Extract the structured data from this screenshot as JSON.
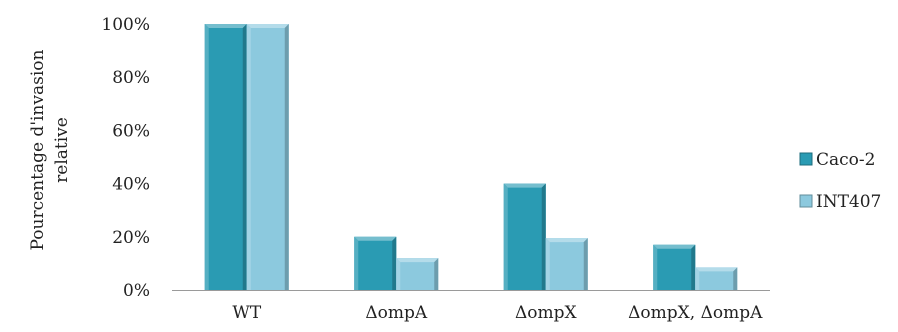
{
  "chart_data": {
    "type": "bar",
    "categories": [
      "WT",
      "ΔompA",
      "ΔompX",
      "ΔompX, ΔompA"
    ],
    "series": [
      {
        "name": "Caco-2",
        "values": [
          100,
          20,
          40,
          17
        ],
        "color": "#2a9bb3"
      },
      {
        "name": "INT407",
        "values": [
          100,
          12,
          19.5,
          8.5
        ],
        "color": "#8cc9de"
      }
    ],
    "title": "",
    "xlabel": "",
    "ylabel_lines": [
      "Pourcentage d'invasion",
      "relative"
    ],
    "ylim": [
      0,
      100
    ],
    "yticks": [
      "0%",
      "20%",
      "40%",
      "60%",
      "80%",
      "100%"
    ],
    "ytick_values": [
      0,
      20,
      40,
      60,
      80,
      100
    ],
    "grid": false,
    "bar_style": "3d-bevel",
    "legend_position": "right"
  }
}
